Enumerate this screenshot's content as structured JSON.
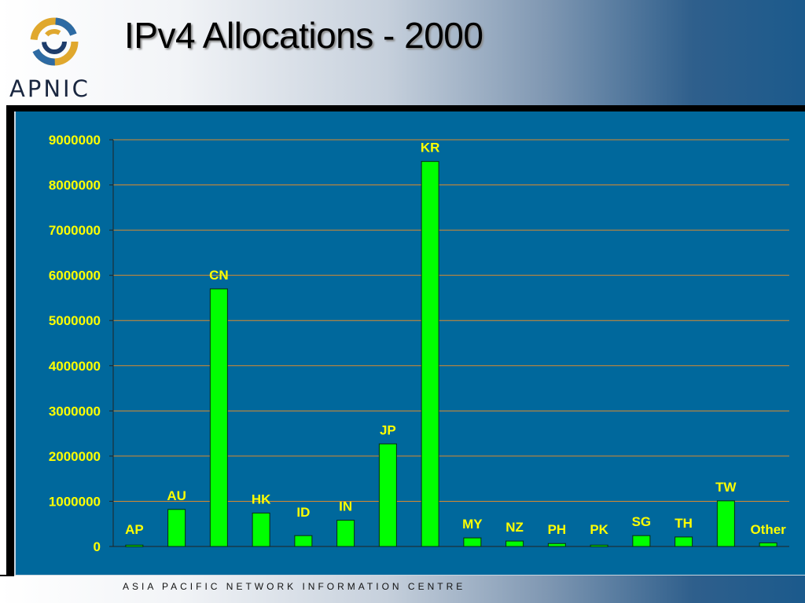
{
  "header": {
    "title": "IPv4 Allocations - 2000",
    "logo_text": "APNIC"
  },
  "footer": {
    "text": "ASIA PACIFIC NETWORK  INFORMATION CENTRE"
  },
  "colors": {
    "bar": "#00ff00",
    "label": "#ffff00",
    "tick": "#ffff00",
    "grid": "#d98a2e",
    "plot_background": "#00689c"
  },
  "chart_data": {
    "type": "bar",
    "title": "",
    "xlabel": "",
    "ylabel": "",
    "categories": [
      "AP",
      "AU",
      "CN",
      "HK",
      "ID",
      "IN",
      "JP",
      "KR",
      "MY",
      "NZ",
      "PH",
      "PK",
      "SG",
      "TH",
      "TW",
      "Other"
    ],
    "values": [
      30000,
      820000,
      5700000,
      740000,
      240000,
      580000,
      2270000,
      8520000,
      190000,
      120000,
      65000,
      30000,
      240000,
      210000,
      1010000,
      80000
    ],
    "ylim": [
      0,
      9000000
    ],
    "yticks": [
      "0",
      "1000000",
      "2000000",
      "3000000",
      "4000000",
      "5000000",
      "6000000",
      "7000000",
      "8000000",
      "9000000"
    ],
    "grid": true,
    "legend": "none"
  }
}
